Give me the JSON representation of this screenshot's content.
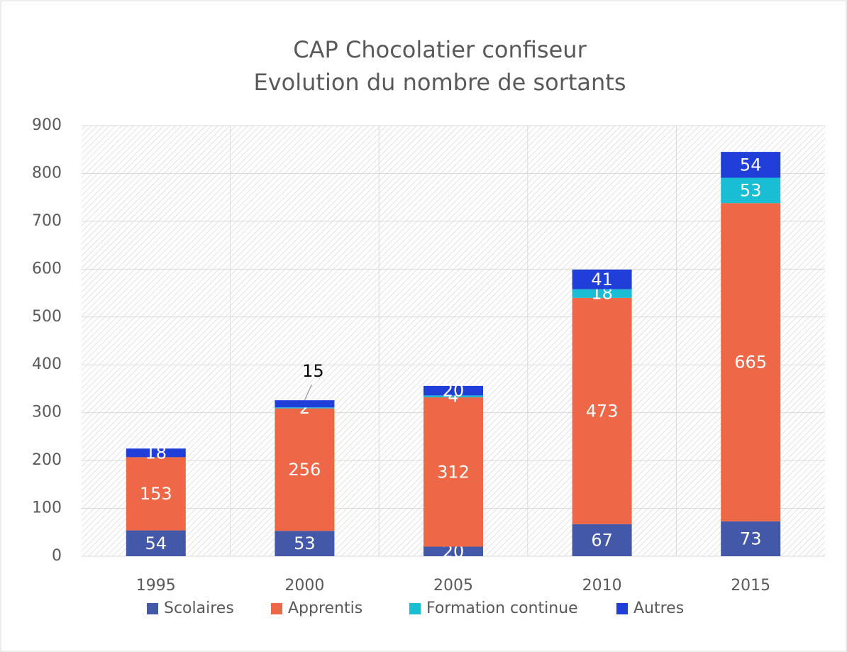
{
  "chart_data": {
    "type": "stacked_bar",
    "title": "CAP Chocolatier confiseur",
    "subtitle": "Evolution du nombre de sortants",
    "categories": [
      "1995",
      "2000",
      "2005",
      "2010",
      "2015"
    ],
    "series": [
      {
        "name": "Scolaires",
        "color": "#4358a8",
        "values": [
          54,
          53,
          20,
          67,
          73
        ]
      },
      {
        "name": "Apprentis",
        "color": "#ee6746",
        "values": [
          153,
          256,
          312,
          473,
          665
        ]
      },
      {
        "name": "Formation continue",
        "color": "#19bdd4",
        "values": [
          null,
          2,
          4,
          18,
          53
        ]
      },
      {
        "name": "Autres",
        "color": "#1f3fd8",
        "values": [
          18,
          15,
          20,
          41,
          54
        ]
      }
    ],
    "ylim": [
      0,
      900
    ],
    "yticks": [
      0,
      100,
      200,
      300,
      400,
      500,
      600,
      700,
      800,
      900
    ],
    "grid": true,
    "legend": "bottom"
  }
}
